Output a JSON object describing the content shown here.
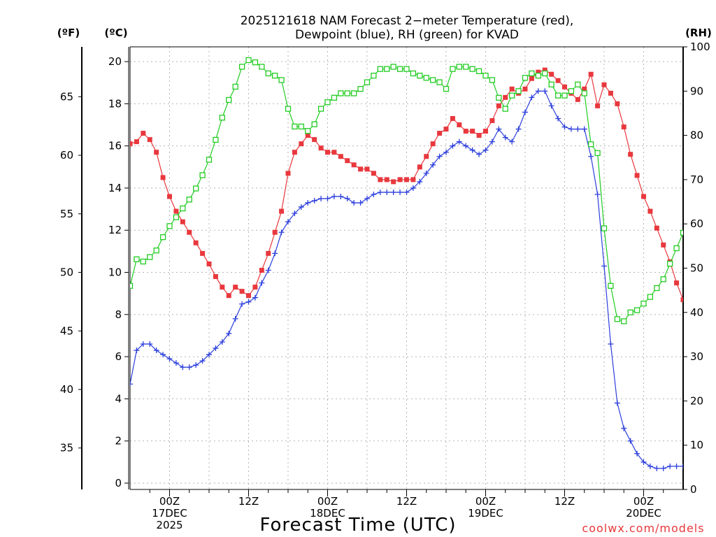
{
  "chart_data": {
    "type": "line",
    "title_line1": "2025121618 NAM Forecast 2−meter Temperature (red),",
    "title_line2": "Dewpoint (blue), RH (green) for KVAD",
    "xlabel": "Forecast Time (UTC)",
    "credit": "coolwx.com/models",
    "unit_f": "(ºF)",
    "unit_c": "(ºC)",
    "unit_rh": "(RH)",
    "x_hours_start": 18,
    "x_hours_step": 1,
    "xlim_hours": [
      18,
      102
    ],
    "x_ticks": [
      {
        "hour": 24,
        "lines": [
          "00Z",
          "17DEC",
          "2025"
        ]
      },
      {
        "hour": 36,
        "lines": [
          "12Z"
        ]
      },
      {
        "hour": 48,
        "lines": [
          "00Z",
          "18DEC"
        ]
      },
      {
        "hour": 60,
        "lines": [
          "12Z"
        ]
      },
      {
        "hour": 72,
        "lines": [
          "00Z",
          "19DEC"
        ]
      },
      {
        "hour": 84,
        "lines": [
          "12Z"
        ]
      },
      {
        "hour": 96,
        "lines": [
          "00Z",
          "20DEC"
        ]
      }
    ],
    "y_celsius_ticks": [
      "0",
      "2",
      "4",
      "6",
      "8",
      "10",
      "12",
      "14",
      "16",
      "18",
      "20"
    ],
    "y_fahrenheit_ticks": [
      "35",
      "40",
      "45",
      "50",
      "55",
      "60",
      "65"
    ],
    "y_rh_ticks": [
      "0",
      "10",
      "20",
      "30",
      "40",
      "50",
      "60",
      "70",
      "80",
      "90",
      "100"
    ],
    "ylim_celsius": [
      -0.3,
      20.7
    ],
    "ylim_rh": [
      0,
      100
    ],
    "colors": {
      "temperature": "#e8383d",
      "dewpoint": "#2c3fdc",
      "rh": "#22cc22",
      "grid": "#b5b5b5"
    },
    "series": [
      {
        "name": "Temperature",
        "units": "C",
        "values": [
          16.1,
          16.2,
          16.6,
          16.3,
          15.7,
          14.5,
          13.6,
          12.9,
          12.4,
          11.9,
          11.4,
          10.9,
          10.4,
          9.8,
          9.3,
          8.9,
          9.3,
          9.1,
          8.9,
          9.3,
          10.1,
          10.9,
          11.9,
          12.9,
          14.7,
          15.7,
          16.1,
          16.5,
          16.3,
          15.9,
          15.7,
          15.7,
          15.5,
          15.3,
          15.1,
          14.9,
          14.9,
          14.7,
          14.4,
          14.4,
          14.3,
          14.4,
          14.4,
          14.4,
          15.0,
          15.5,
          16.1,
          16.6,
          16.8,
          17.3,
          17.0,
          16.7,
          16.7,
          16.5,
          16.7,
          17.2,
          17.9,
          18.3,
          18.7,
          18.5,
          18.7,
          19.2,
          19.5,
          19.6,
          19.4,
          19.1,
          18.8,
          18.5,
          18.2,
          18.7,
          19.4,
          17.9,
          18.9,
          18.5,
          18.0,
          16.9,
          15.6,
          14.6,
          13.6,
          12.9,
          12.1,
          11.3,
          10.5,
          9.5,
          8.7
        ]
      },
      {
        "name": "Dewpoint",
        "units": "C",
        "values": [
          4.7,
          6.3,
          6.6,
          6.6,
          6.3,
          6.1,
          5.9,
          5.7,
          5.5,
          5.5,
          5.6,
          5.8,
          6.1,
          6.4,
          6.7,
          7.1,
          7.8,
          8.5,
          8.6,
          8.8,
          9.5,
          10.1,
          10.9,
          11.9,
          12.4,
          12.8,
          13.1,
          13.3,
          13.4,
          13.5,
          13.5,
          13.6,
          13.6,
          13.5,
          13.3,
          13.3,
          13.5,
          13.7,
          13.8,
          13.8,
          13.8,
          13.8,
          13.8,
          14.0,
          14.3,
          14.7,
          15.1,
          15.5,
          15.7,
          16.0,
          16.2,
          16.0,
          15.8,
          15.6,
          15.8,
          16.2,
          16.8,
          16.4,
          16.2,
          16.8,
          17.6,
          18.3,
          18.6,
          18.6,
          17.9,
          17.3,
          16.9,
          16.8,
          16.8,
          16.8,
          15.5,
          13.7,
          10.3,
          6.6,
          3.8,
          2.6,
          2.0,
          1.4,
          1.0,
          0.8,
          0.7,
          0.7,
          0.8,
          0.8,
          0.8
        ]
      },
      {
        "name": "RH",
        "units": "%",
        "values": [
          46,
          52,
          51.5,
          52.5,
          54,
          57,
          59.5,
          61.5,
          63.5,
          65.5,
          68,
          71,
          74.5,
          79,
          84,
          88,
          91,
          95.5,
          97,
          96.5,
          95.5,
          94,
          93.5,
          92.5,
          86,
          82,
          82,
          81,
          82.5,
          86,
          87.5,
          88.5,
          89.5,
          89.5,
          89.5,
          90.5,
          92,
          93.5,
          95,
          95,
          95.5,
          95,
          95,
          94,
          93.5,
          93,
          92.5,
          92,
          90.5,
          95,
          95.5,
          95.5,
          95,
          94.5,
          93.5,
          92.5,
          88.5,
          86,
          89,
          90,
          93,
          94,
          93.5,
          94,
          91.5,
          89,
          89,
          90,
          91.5,
          89.5,
          78,
          76,
          59,
          46,
          38.5,
          38,
          40,
          40.5,
          42,
          43.5,
          45.5,
          47.5,
          51,
          54.5,
          58
        ]
      }
    ]
  }
}
